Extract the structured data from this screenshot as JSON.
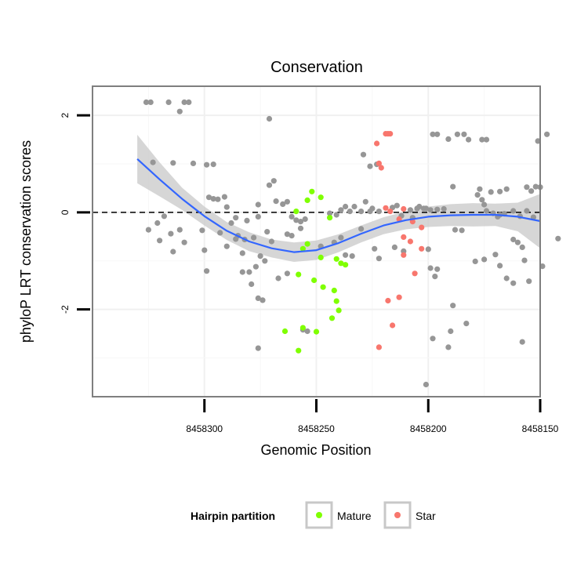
{
  "chart_data": {
    "type": "scatter",
    "title": "Conservation",
    "xlabel": "Genomic Position",
    "ylabel": "phyloP LRT conservation scores",
    "x_reversed": true,
    "xlim": [
      8458150,
      8458350
    ],
    "ylim": [
      -3.8,
      2.6
    ],
    "x_ticks": [
      8458300,
      8458250,
      8458200,
      8458150
    ],
    "x_tick_labels": [
      "8458300",
      "8458250",
      "8458200",
      "8458150"
    ],
    "y_ticks": [
      -2,
      0,
      2
    ],
    "y_tick_labels": [
      "-2",
      "0",
      "2"
    ],
    "grid": true,
    "reference_line": {
      "y": 0,
      "style": "dashed"
    },
    "legend": {
      "title": "Hairpin partition",
      "placement": "bottom",
      "entries": [
        {
          "label": "Mature",
          "color": "#7fff00"
        },
        {
          "label": "Star",
          "color": "#f8766d"
        }
      ]
    },
    "colors": {
      "other": "#969696",
      "mature": "#7fff00",
      "star": "#f8766d",
      "smooth": "#3366ff",
      "band": "#cccccc"
    },
    "series": [
      {
        "group": "other",
        "points": [
          [
            8458326,
            2.27
          ],
          [
            8458324,
            2.27
          ],
          [
            8458316,
            2.27
          ],
          [
            8458309,
            2.27
          ],
          [
            8458307,
            2.27
          ],
          [
            8458311,
            2.08
          ],
          [
            8458323,
            1.03
          ],
          [
            8458314,
            1.02
          ],
          [
            8458305,
            1.01
          ],
          [
            8458299,
            0.98
          ],
          [
            8458296,
            0.99
          ],
          [
            8458318,
            -0.08
          ],
          [
            8458321,
            -0.22
          ],
          [
            8458325,
            -0.36
          ],
          [
            8458311,
            -0.36
          ],
          [
            8458315,
            -0.44
          ],
          [
            8458320,
            -0.58
          ],
          [
            8458309,
            -0.62
          ],
          [
            8458314,
            -0.81
          ],
          [
            8458301,
            -0.37
          ],
          [
            8458300,
            -0.78
          ],
          [
            8458298,
            0.31
          ],
          [
            8458296,
            0.28
          ],
          [
            8458294,
            0.27
          ],
          [
            8458291,
            0.32
          ],
          [
            8458290,
            0.11
          ],
          [
            8458286,
            -0.11
          ],
          [
            8458288,
            -0.22
          ],
          [
            8458285,
            -0.48
          ],
          [
            8458282,
            -0.56
          ],
          [
            8458278,
            -0.52
          ],
          [
            8458283,
            -0.84
          ],
          [
            8458299,
            -1.21
          ],
          [
            8458283,
            -1.23
          ],
          [
            8458280,
            -1.23
          ],
          [
            8458293,
            -0.42
          ],
          [
            8458286,
            -0.55
          ],
          [
            8458290,
            -0.7
          ],
          [
            8458281,
            -0.17
          ],
          [
            8458276,
            -0.09
          ],
          [
            8458276,
            0.16
          ],
          [
            8458271,
            0.56
          ],
          [
            8458269,
            0.65
          ],
          [
            8458268,
            0.23
          ],
          [
            8458265,
            0.17
          ],
          [
            8458263,
            0.22
          ],
          [
            8458261,
            -0.09
          ],
          [
            8458259,
            -0.16
          ],
          [
            8458257,
            -0.19
          ],
          [
            8458255,
            -0.14
          ],
          [
            8458257,
            -0.33
          ],
          [
            8458272,
            -0.4
          ],
          [
            8458270,
            -0.6
          ],
          [
            8458275,
            -0.9
          ],
          [
            8458273,
            -1.0
          ],
          [
            8458277,
            -1.12
          ],
          [
            8458279,
            -1.48
          ],
          [
            8458276,
            -1.77
          ],
          [
            8458274,
            -1.81
          ],
          [
            8458271,
            1.93
          ],
          [
            8458276,
            -2.8
          ],
          [
            8458267,
            -1.36
          ],
          [
            8458263,
            -1.26
          ],
          [
            8458263,
            -0.45
          ],
          [
            8458261,
            -0.48
          ],
          [
            8458256,
            -2.42
          ],
          [
            8458254,
            -2.45
          ],
          [
            8458229,
            1.19
          ],
          [
            8458226,
            0.95
          ],
          [
            8458223,
            0.99
          ],
          [
            8458222,
            0.02
          ],
          [
            8458226,
            0.02
          ],
          [
            8458230,
            0.02
          ],
          [
            8458235,
            0.02
          ],
          [
            8458233,
            0.12
          ],
          [
            8458237,
            0.12
          ],
          [
            8458239,
            0.05
          ],
          [
            8458225,
            0.08
          ],
          [
            8458228,
            0.22
          ],
          [
            8458216,
            0.1
          ],
          [
            8458214,
            0.14
          ],
          [
            8458212,
            -0.07
          ],
          [
            8458207,
            -0.11
          ],
          [
            8458204,
            0.12
          ],
          [
            8458241,
            -0.05
          ],
          [
            8458244,
            -0.02
          ],
          [
            8458248,
            -0.7
          ],
          [
            8458242,
            -0.62
          ],
          [
            8458239,
            -0.52
          ],
          [
            8458237,
            -0.88
          ],
          [
            8458234,
            -0.9
          ],
          [
            8458230,
            -0.34
          ],
          [
            8458224,
            -0.75
          ],
          [
            8458222,
            -0.95
          ],
          [
            8458215,
            -0.72
          ],
          [
            8458211,
            -0.8
          ],
          [
            8458198,
            1.61
          ],
          [
            8458196,
            1.61
          ],
          [
            8458191,
            1.51
          ],
          [
            8458187,
            1.61
          ],
          [
            8458184,
            1.61
          ],
          [
            8458182,
            1.5
          ],
          [
            8458176,
            1.5
          ],
          [
            8458174,
            1.5
          ],
          [
            8458205,
            0.08
          ],
          [
            8458201,
            0.08
          ],
          [
            8458199,
            0.05
          ],
          [
            8458196,
            0.06
          ],
          [
            8458193,
            0.07
          ],
          [
            8458208,
            0.05
          ],
          [
            8458202,
            0.08
          ],
          [
            8458200,
            -0.76
          ],
          [
            8458188,
            -0.36
          ],
          [
            8458185,
            -0.37
          ],
          [
            8458199,
            -1.15
          ],
          [
            8458196,
            -1.17
          ],
          [
            8458197,
            -1.32
          ],
          [
            8458198,
            -2.6
          ],
          [
            8458191,
            -2.78
          ],
          [
            8458190,
            -2.45
          ],
          [
            8458183,
            -2.29
          ],
          [
            8458189,
            0.53
          ],
          [
            8458178,
            0.36
          ],
          [
            8458177,
            0.48
          ],
          [
            8458176,
            0.26
          ],
          [
            8458175,
            0.16
          ],
          [
            8458174,
            0.03
          ],
          [
            8458171,
            -0.02
          ],
          [
            8458169,
            -0.09
          ],
          [
            8458168,
            -0.05
          ],
          [
            8458166,
            -0.03
          ],
          [
            8458162,
            0.03
          ],
          [
            8458159,
            -0.08
          ],
          [
            8458156,
            0.03
          ],
          [
            8458153,
            -0.1
          ],
          [
            8458175,
            -0.97
          ],
          [
            8458170,
            -0.87
          ],
          [
            8458168,
            -1.1
          ],
          [
            8458165,
            -1.36
          ],
          [
            8458162,
            -0.56
          ],
          [
            8458160,
            -0.62
          ],
          [
            8458158,
            -0.72
          ],
          [
            8458157,
            -0.99
          ],
          [
            8458155,
            -1.42
          ],
          [
            8458149,
            -1.11
          ],
          [
            8458142,
            -0.54
          ],
          [
            8458158,
            -2.67
          ],
          [
            8458156,
            0.52
          ],
          [
            8458154,
            0.44
          ],
          [
            8458152,
            0.53
          ],
          [
            8458150,
            0.52
          ],
          [
            8458147,
            1.61
          ],
          [
            8458151,
            1.47
          ],
          [
            8458165,
            0.48
          ],
          [
            8458168,
            0.43
          ],
          [
            8458172,
            0.42
          ],
          [
            8458201,
            -3.55
          ],
          [
            8458189,
            -1.92
          ],
          [
            8458179,
            -1.01
          ],
          [
            8458162,
            -1.46
          ]
        ]
      },
      {
        "group": "mature",
        "name": "Mature",
        "points": [
          [
            8458259,
            0.02
          ],
          [
            8458254,
            0.25
          ],
          [
            8458252,
            0.43
          ],
          [
            8458248,
            0.31
          ],
          [
            8458244,
            -0.11
          ],
          [
            8458256,
            -0.75
          ],
          [
            8458254,
            -0.65
          ],
          [
            8458248,
            -0.93
          ],
          [
            8458241,
            -0.96
          ],
          [
            8458239,
            -1.05
          ],
          [
            8458237,
            -1.08
          ],
          [
            8458258,
            -1.28
          ],
          [
            8458251,
            -1.4
          ],
          [
            8458247,
            -1.54
          ],
          [
            8458242,
            -1.61
          ],
          [
            8458241,
            -1.83
          ],
          [
            8458240,
            -2.02
          ],
          [
            8458243,
            -2.18
          ],
          [
            8458250,
            -2.46
          ],
          [
            8458256,
            -2.38
          ],
          [
            8458258,
            -2.85
          ],
          [
            8458264,
            -2.45
          ]
        ]
      },
      {
        "group": "star",
        "name": "Star",
        "points": [
          [
            8458223,
            1.42
          ],
          [
            8458219,
            0.09
          ],
          [
            8458217,
            0.02
          ],
          [
            8458211,
            0.07
          ],
          [
            8458213,
            -0.14
          ],
          [
            8458207,
            -0.19
          ],
          [
            8458203,
            -0.31
          ],
          [
            8458211,
            -0.51
          ],
          [
            8458208,
            -0.6
          ],
          [
            8458203,
            -0.75
          ],
          [
            8458211,
            -0.88
          ],
          [
            8458206,
            -1.26
          ],
          [
            8458218,
            -1.82
          ],
          [
            8458213,
            -1.75
          ],
          [
            8458216,
            -2.33
          ],
          [
            8458222,
            -2.78
          ],
          [
            8458217,
            1.62
          ],
          [
            8458218,
            1.62
          ],
          [
            8458219,
            1.62
          ],
          [
            8458221,
            0.92
          ],
          [
            8458222,
            1.01
          ]
        ]
      }
    ],
    "smooth_line": [
      [
        8458330,
        1.1
      ],
      [
        8458320,
        0.68
      ],
      [
        8458310,
        0.28
      ],
      [
        8458300,
        -0.08
      ],
      [
        8458290,
        -0.38
      ],
      [
        8458280,
        -0.6
      ],
      [
        8458270,
        -0.74
      ],
      [
        8458260,
        -0.82
      ],
      [
        8458250,
        -0.78
      ],
      [
        8458240,
        -0.63
      ],
      [
        8458230,
        -0.44
      ],
      [
        8458220,
        -0.27
      ],
      [
        8458210,
        -0.16
      ],
      [
        8458200,
        -0.09
      ],
      [
        8458190,
        -0.06
      ],
      [
        8458180,
        -0.05
      ],
      [
        8458170,
        -0.05
      ],
      [
        8458160,
        -0.09
      ],
      [
        8458150,
        -0.18
      ]
    ],
    "smooth_band": {
      "upper": [
        [
          8458330,
          1.6
        ],
        [
          8458320,
          1.03
        ],
        [
          8458310,
          0.51
        ],
        [
          8458300,
          0.12
        ],
        [
          8458290,
          -0.2
        ],
        [
          8458280,
          -0.41
        ],
        [
          8458270,
          -0.56
        ],
        [
          8458260,
          -0.62
        ],
        [
          8458250,
          -0.58
        ],
        [
          8458240,
          -0.45
        ],
        [
          8458230,
          -0.27
        ],
        [
          8458220,
          -0.1
        ],
        [
          8458210,
          0.02
        ],
        [
          8458200,
          0.12
        ],
        [
          8458190,
          0.17
        ],
        [
          8458180,
          0.19
        ],
        [
          8458170,
          0.18
        ],
        [
          8458160,
          0.2
        ],
        [
          8458150,
          0.38
        ]
      ],
      "lower": [
        [
          8458330,
          0.6
        ],
        [
          8458320,
          0.33
        ],
        [
          8458310,
          0.05
        ],
        [
          8458300,
          -0.27
        ],
        [
          8458290,
          -0.57
        ],
        [
          8458280,
          -0.8
        ],
        [
          8458270,
          -0.93
        ],
        [
          8458260,
          -1.02
        ],
        [
          8458250,
          -0.98
        ],
        [
          8458240,
          -0.82
        ],
        [
          8458230,
          -0.62
        ],
        [
          8458220,
          -0.45
        ],
        [
          8458210,
          -0.35
        ],
        [
          8458200,
          -0.3
        ],
        [
          8458190,
          -0.28
        ],
        [
          8458180,
          -0.29
        ],
        [
          8458170,
          -0.28
        ],
        [
          8458160,
          -0.39
        ],
        [
          8458150,
          -0.74
        ]
      ]
    }
  }
}
